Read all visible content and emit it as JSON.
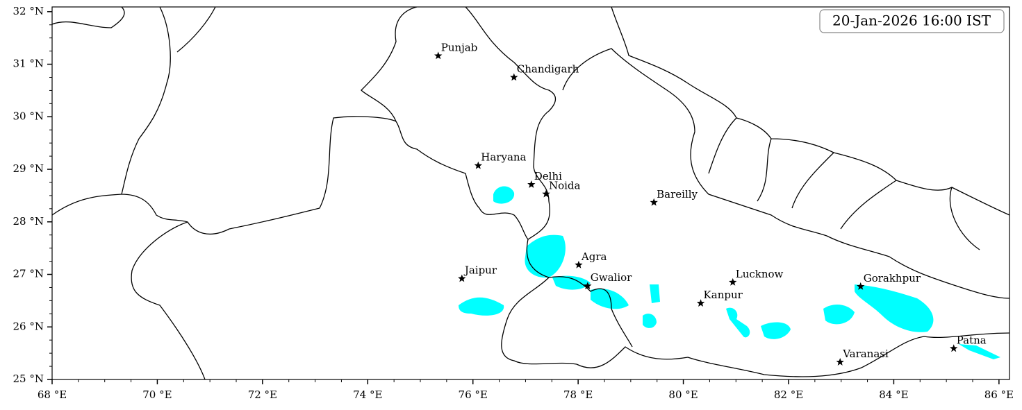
{
  "map": {
    "timestamp": "20-Jan-2026 16:00 IST",
    "xlim": [
      68,
      86.2
    ],
    "ylim": [
      25,
      32.09
    ],
    "xticks": [
      {
        "value": 68,
        "label": "68 °E"
      },
      {
        "value": 70,
        "label": "70 °E"
      },
      {
        "value": 72,
        "label": "72 °E"
      },
      {
        "value": 74,
        "label": "74 °E"
      },
      {
        "value": 76,
        "label": "76 °E"
      },
      {
        "value": 78,
        "label": "78 °E"
      },
      {
        "value": 80,
        "label": "80 °E"
      },
      {
        "value": 82,
        "label": "82 °E"
      },
      {
        "value": 84,
        "label": "84 °E"
      },
      {
        "value": 86,
        "label": "86 °E"
      }
    ],
    "yticks": [
      {
        "value": 25,
        "label": "25 °N"
      },
      {
        "value": 26,
        "label": "26 °N"
      },
      {
        "value": 27,
        "label": "27 °N"
      },
      {
        "value": 28,
        "label": "28 °N"
      },
      {
        "value": 29,
        "label": "29 °N"
      },
      {
        "value": 30,
        "label": "30 °N"
      },
      {
        "value": 31,
        "label": "31 °N"
      },
      {
        "value": 32,
        "label": "32 °N"
      }
    ],
    "cities": [
      {
        "name": "Punjab",
        "lon": 75.34,
        "lat": 31.16
      },
      {
        "name": "Chandigarh",
        "lon": 76.78,
        "lat": 30.75
      },
      {
        "name": "Haryana",
        "lon": 76.1,
        "lat": 29.07
      },
      {
        "name": "Delhi",
        "lon": 77.11,
        "lat": 28.71
      },
      {
        "name": "Noida",
        "lon": 77.39,
        "lat": 28.53
      },
      {
        "name": "Bareilly",
        "lon": 79.44,
        "lat": 28.37
      },
      {
        "name": "Agra",
        "lon": 78.01,
        "lat": 27.18
      },
      {
        "name": "Jaipur",
        "lon": 75.79,
        "lat": 26.92
      },
      {
        "name": "Gwalior",
        "lon": 78.18,
        "lat": 26.78
      },
      {
        "name": "Lucknow",
        "lon": 80.94,
        "lat": 26.85
      },
      {
        "name": "Kanpur",
        "lon": 80.33,
        "lat": 26.45
      },
      {
        "name": "Gorakhpur",
        "lon": 83.37,
        "lat": 26.77
      },
      {
        "name": "Varanasi",
        "lon": 82.98,
        "lat": 25.33
      },
      {
        "name": "Patna",
        "lon": 85.14,
        "lat": 25.59
      }
    ]
  }
}
